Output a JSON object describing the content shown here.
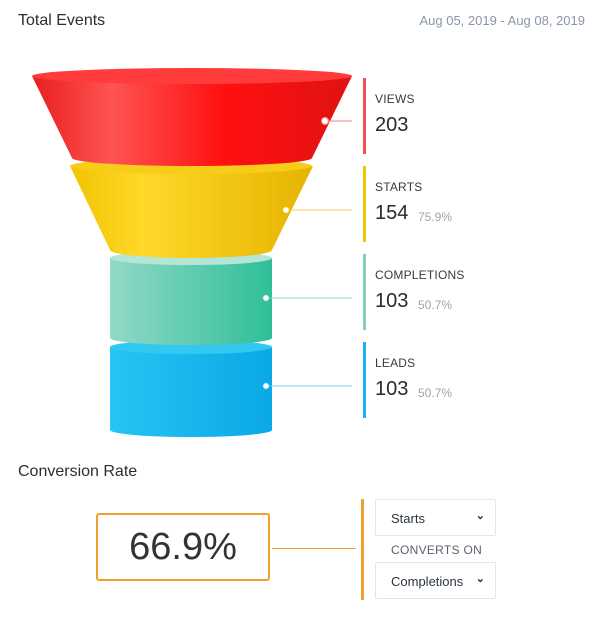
{
  "header": {
    "title": "Total Events",
    "date_range": "Aug 05, 2019 - Aug 08, 2019"
  },
  "funnel": {
    "stages": [
      {
        "label": "VIEWS",
        "value": "203",
        "percent": "",
        "color": "#f43a36"
      },
      {
        "label": "STARTS",
        "value": "154",
        "percent": "75.9%",
        "color": "#f2c500"
      },
      {
        "label": "COMPLETIONS",
        "value": "103",
        "percent": "50.7%",
        "color": "#5ecbaf"
      },
      {
        "label": "LEADS",
        "value": "103",
        "percent": "50.7%",
        "color": "#1db5ec"
      }
    ]
  },
  "conversion": {
    "title": "Conversion Rate",
    "rate": "66.9%",
    "from_select": "Starts",
    "converts_on": "CONVERTS ON",
    "to_select": "Completions",
    "accent": "#f0a030"
  }
}
